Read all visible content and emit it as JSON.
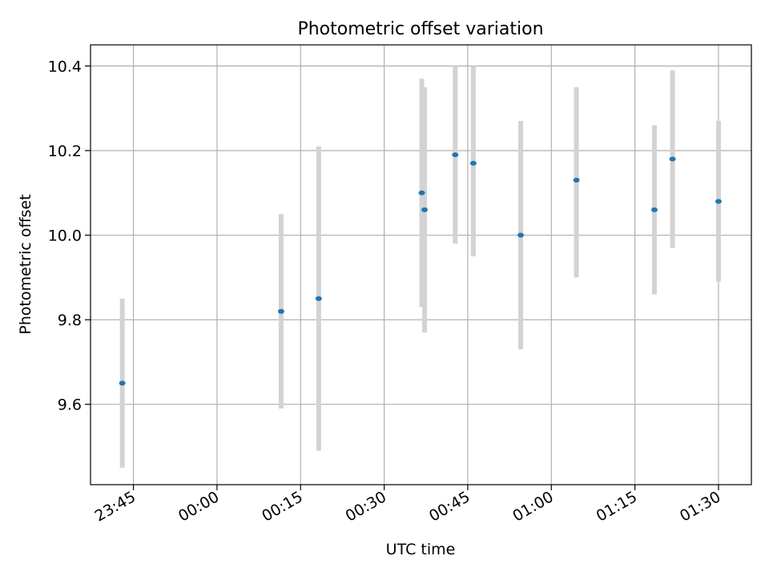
{
  "chart_data": {
    "type": "scatter",
    "title": "Photometric offset variation",
    "xlabel": "UTC time",
    "ylabel": "Photometric offset",
    "x_unit": "HH:MM UTC (continuing past midnight)",
    "xlim": [
      "23:37:18",
      "01:35:54"
    ],
    "ylim": [
      9.41,
      10.45
    ],
    "xticks": [
      "23:45",
      "00:00",
      "00:15",
      "00:30",
      "00:45",
      "01:00",
      "01:15",
      "01:30"
    ],
    "yticks": [
      "9.6",
      "9.8",
      "10.0",
      "10.2",
      "10.4"
    ],
    "grid": true,
    "legend": "none",
    "colors": {
      "marker": "#1f77b4",
      "errorbar": "#d3d3d3",
      "grid": "#b0b0b0",
      "axes": "#000000"
    },
    "points": [
      {
        "x": "23:43:00",
        "y": 9.65,
        "ylow": 9.45,
        "yhigh": 9.85
      },
      {
        "x": "00:11:30",
        "y": 9.82,
        "ylow": 9.59,
        "yhigh": 10.05
      },
      {
        "x": "00:18:15",
        "y": 9.85,
        "ylow": 9.49,
        "yhigh": 10.21
      },
      {
        "x": "00:36:45",
        "y": 10.1,
        "ylow": 9.83,
        "yhigh": 10.37
      },
      {
        "x": "00:37:15",
        "y": 10.06,
        "ylow": 9.77,
        "yhigh": 10.35
      },
      {
        "x": "00:42:45",
        "y": 10.19,
        "ylow": 9.98,
        "yhigh": 10.4
      },
      {
        "x": "00:46:00",
        "y": 10.17,
        "ylow": 9.95,
        "yhigh": 10.4
      },
      {
        "x": "00:54:30",
        "y": 10.0,
        "ylow": 9.73,
        "yhigh": 10.27
      },
      {
        "x": "01:04:30",
        "y": 10.13,
        "ylow": 9.9,
        "yhigh": 10.35
      },
      {
        "x": "01:18:30",
        "y": 10.06,
        "ylow": 9.86,
        "yhigh": 10.26
      },
      {
        "x": "01:21:45",
        "y": 10.18,
        "ylow": 9.97,
        "yhigh": 10.39
      },
      {
        "x": "01:30:00",
        "y": 10.08,
        "ylow": 9.89,
        "yhigh": 10.27
      }
    ]
  }
}
